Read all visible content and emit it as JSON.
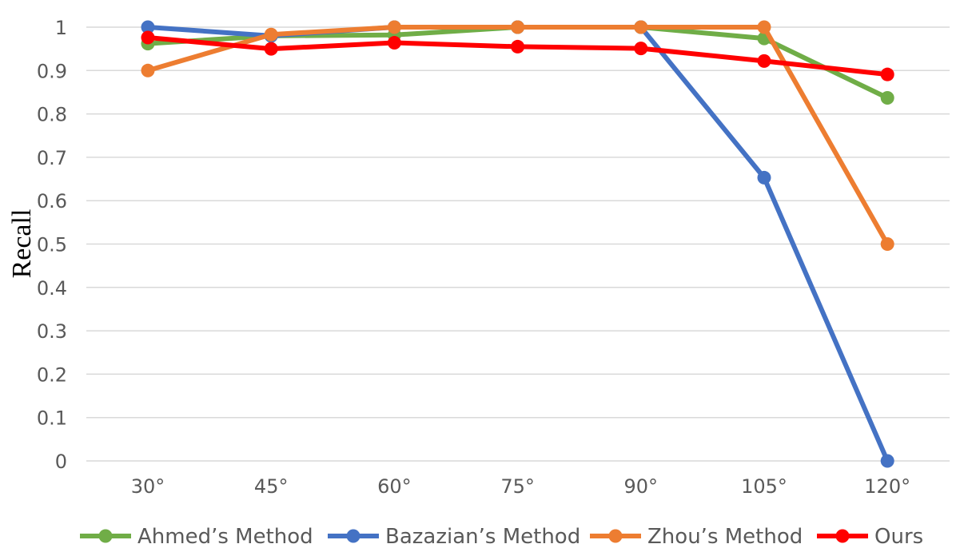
{
  "chart_data": {
    "type": "line",
    "title": "",
    "xlabel": "",
    "ylabel": "Recall",
    "categories": [
      "30°",
      "45°",
      "60°",
      "75°",
      "90°",
      "105°",
      "120°"
    ],
    "ylim": [
      0,
      1
    ],
    "yticks": [
      "0",
      "0.1",
      "0.2",
      "0.3",
      "0.4",
      "0.5",
      "0.6",
      "0.7",
      "0.8",
      "0.9",
      "1"
    ],
    "grid": true,
    "legend_position": "bottom",
    "series": [
      {
        "name": "Ahmed’s Method",
        "color": "#70ad47",
        "values": [
          0.962,
          0.98,
          0.982,
          1.0,
          1.0,
          0.974,
          0.837
        ]
      },
      {
        "name": "Bazazian’s Method",
        "color": "#4472c4",
        "values": [
          1.0,
          0.98,
          1.0,
          1.0,
          1.0,
          0.653,
          0.0
        ]
      },
      {
        "name": "Zhou’s Method",
        "color": "#ed7d31",
        "values": [
          0.9,
          0.983,
          1.0,
          1.0,
          1.0,
          1.0,
          0.5
        ]
      },
      {
        "name": "Ours",
        "color": "#ff0000",
        "values": [
          0.976,
          0.95,
          0.964,
          0.955,
          0.951,
          0.922,
          0.891
        ]
      }
    ]
  }
}
